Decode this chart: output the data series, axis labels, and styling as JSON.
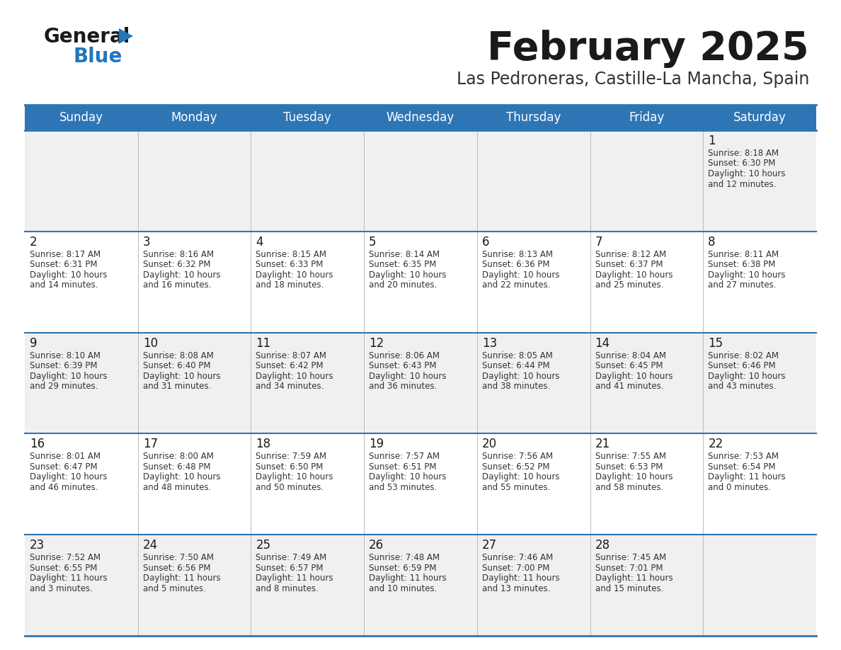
{
  "title": "February 2025",
  "subtitle": "Las Pedroneras, Castille-La Mancha, Spain",
  "header_bg": "#2E75B6",
  "header_text": "#FFFFFF",
  "row_bg_odd": "#F0F0F0",
  "row_bg_even": "#FFFFFF",
  "separator_color": "#2E75B6",
  "day_headers": [
    "Sunday",
    "Monday",
    "Tuesday",
    "Wednesday",
    "Thursday",
    "Friday",
    "Saturday"
  ],
  "days": [
    {
      "day": 1,
      "col": 6,
      "row": 0,
      "sunrise": "8:18 AM",
      "sunset": "6:30 PM",
      "daylight": "10 hours and 12 minutes."
    },
    {
      "day": 2,
      "col": 0,
      "row": 1,
      "sunrise": "8:17 AM",
      "sunset": "6:31 PM",
      "daylight": "10 hours and 14 minutes."
    },
    {
      "day": 3,
      "col": 1,
      "row": 1,
      "sunrise": "8:16 AM",
      "sunset": "6:32 PM",
      "daylight": "10 hours and 16 minutes."
    },
    {
      "day": 4,
      "col": 2,
      "row": 1,
      "sunrise": "8:15 AM",
      "sunset": "6:33 PM",
      "daylight": "10 hours and 18 minutes."
    },
    {
      "day": 5,
      "col": 3,
      "row": 1,
      "sunrise": "8:14 AM",
      "sunset": "6:35 PM",
      "daylight": "10 hours and 20 minutes."
    },
    {
      "day": 6,
      "col": 4,
      "row": 1,
      "sunrise": "8:13 AM",
      "sunset": "6:36 PM",
      "daylight": "10 hours and 22 minutes."
    },
    {
      "day": 7,
      "col": 5,
      "row": 1,
      "sunrise": "8:12 AM",
      "sunset": "6:37 PM",
      "daylight": "10 hours and 25 minutes."
    },
    {
      "day": 8,
      "col": 6,
      "row": 1,
      "sunrise": "8:11 AM",
      "sunset": "6:38 PM",
      "daylight": "10 hours and 27 minutes."
    },
    {
      "day": 9,
      "col": 0,
      "row": 2,
      "sunrise": "8:10 AM",
      "sunset": "6:39 PM",
      "daylight": "10 hours and 29 minutes."
    },
    {
      "day": 10,
      "col": 1,
      "row": 2,
      "sunrise": "8:08 AM",
      "sunset": "6:40 PM",
      "daylight": "10 hours and 31 minutes."
    },
    {
      "day": 11,
      "col": 2,
      "row": 2,
      "sunrise": "8:07 AM",
      "sunset": "6:42 PM",
      "daylight": "10 hours and 34 minutes."
    },
    {
      "day": 12,
      "col": 3,
      "row": 2,
      "sunrise": "8:06 AM",
      "sunset": "6:43 PM",
      "daylight": "10 hours and 36 minutes."
    },
    {
      "day": 13,
      "col": 4,
      "row": 2,
      "sunrise": "8:05 AM",
      "sunset": "6:44 PM",
      "daylight": "10 hours and 38 minutes."
    },
    {
      "day": 14,
      "col": 5,
      "row": 2,
      "sunrise": "8:04 AM",
      "sunset": "6:45 PM",
      "daylight": "10 hours and 41 minutes."
    },
    {
      "day": 15,
      "col": 6,
      "row": 2,
      "sunrise": "8:02 AM",
      "sunset": "6:46 PM",
      "daylight": "10 hours and 43 minutes."
    },
    {
      "day": 16,
      "col": 0,
      "row": 3,
      "sunrise": "8:01 AM",
      "sunset": "6:47 PM",
      "daylight": "10 hours and 46 minutes."
    },
    {
      "day": 17,
      "col": 1,
      "row": 3,
      "sunrise": "8:00 AM",
      "sunset": "6:48 PM",
      "daylight": "10 hours and 48 minutes."
    },
    {
      "day": 18,
      "col": 2,
      "row": 3,
      "sunrise": "7:59 AM",
      "sunset": "6:50 PM",
      "daylight": "10 hours and 50 minutes."
    },
    {
      "day": 19,
      "col": 3,
      "row": 3,
      "sunrise": "7:57 AM",
      "sunset": "6:51 PM",
      "daylight": "10 hours and 53 minutes."
    },
    {
      "day": 20,
      "col": 4,
      "row": 3,
      "sunrise": "7:56 AM",
      "sunset": "6:52 PM",
      "daylight": "10 hours and 55 minutes."
    },
    {
      "day": 21,
      "col": 5,
      "row": 3,
      "sunrise": "7:55 AM",
      "sunset": "6:53 PM",
      "daylight": "10 hours and 58 minutes."
    },
    {
      "day": 22,
      "col": 6,
      "row": 3,
      "sunrise": "7:53 AM",
      "sunset": "6:54 PM",
      "daylight": "11 hours and 0 minutes."
    },
    {
      "day": 23,
      "col": 0,
      "row": 4,
      "sunrise": "7:52 AM",
      "sunset": "6:55 PM",
      "daylight": "11 hours and 3 minutes."
    },
    {
      "day": 24,
      "col": 1,
      "row": 4,
      "sunrise": "7:50 AM",
      "sunset": "6:56 PM",
      "daylight": "11 hours and 5 minutes."
    },
    {
      "day": 25,
      "col": 2,
      "row": 4,
      "sunrise": "7:49 AM",
      "sunset": "6:57 PM",
      "daylight": "11 hours and 8 minutes."
    },
    {
      "day": 26,
      "col": 3,
      "row": 4,
      "sunrise": "7:48 AM",
      "sunset": "6:59 PM",
      "daylight": "11 hours and 10 minutes."
    },
    {
      "day": 27,
      "col": 4,
      "row": 4,
      "sunrise": "7:46 AM",
      "sunset": "7:00 PM",
      "daylight": "11 hours and 13 minutes."
    },
    {
      "day": 28,
      "col": 5,
      "row": 4,
      "sunrise": "7:45 AM",
      "sunset": "7:01 PM",
      "daylight": "11 hours and 15 minutes."
    }
  ],
  "logo_general_color": "#1a1a1a",
  "logo_blue_color": "#2176C0",
  "logo_triangle_color": "#2176C0",
  "title_fontsize": 40,
  "subtitle_fontsize": 17,
  "header_fontsize": 12,
  "day_num_fontsize": 12,
  "cell_text_fontsize": 8.5
}
